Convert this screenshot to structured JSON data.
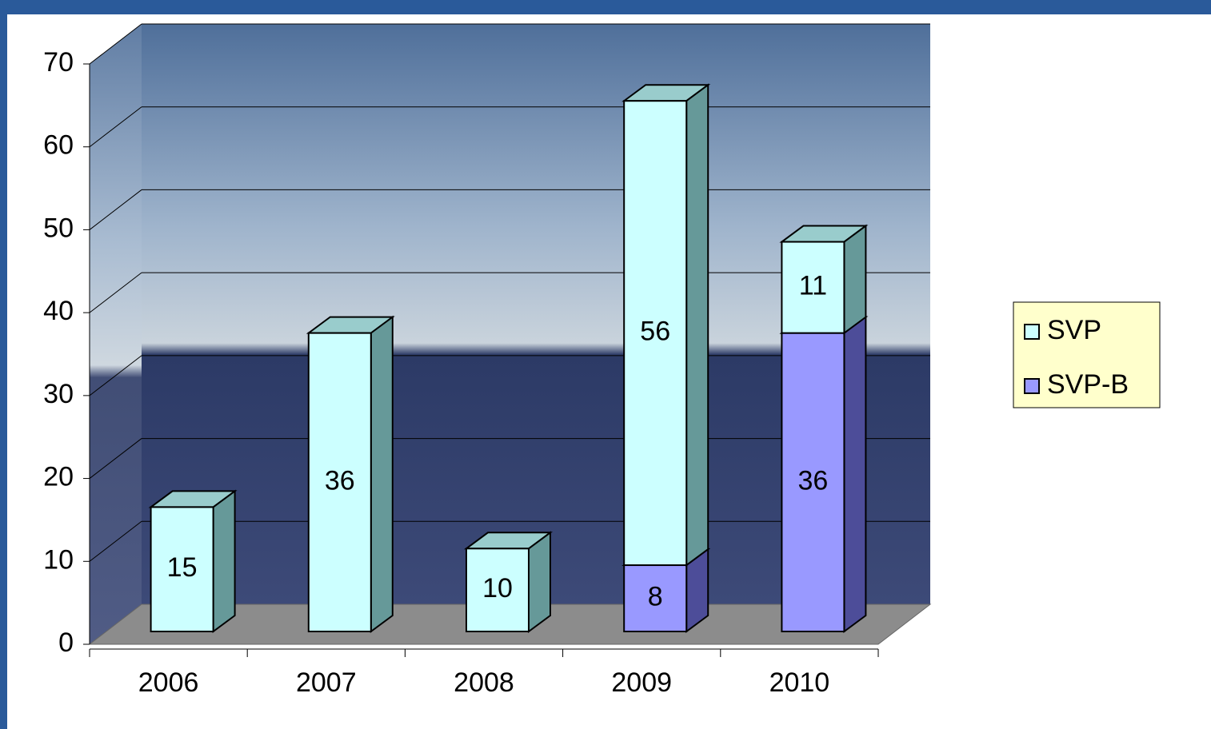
{
  "chart_data": {
    "type": "bar3d_stacked",
    "categories": [
      "2006",
      "2007",
      "2008",
      "2009",
      "2010"
    ],
    "series": [
      {
        "name": "SVP",
        "color": "#ccffff",
        "values": [
          15,
          36,
          10,
          56,
          11
        ]
      },
      {
        "name": "SVP-B",
        "color": "#9999ff",
        "values": [
          null,
          null,
          null,
          8,
          36
        ]
      }
    ],
    "ylim": [
      0,
      70
    ],
    "yticks": [
      0,
      10,
      20,
      30,
      40,
      50,
      60,
      70
    ],
    "grid": true,
    "legend": "right"
  }
}
